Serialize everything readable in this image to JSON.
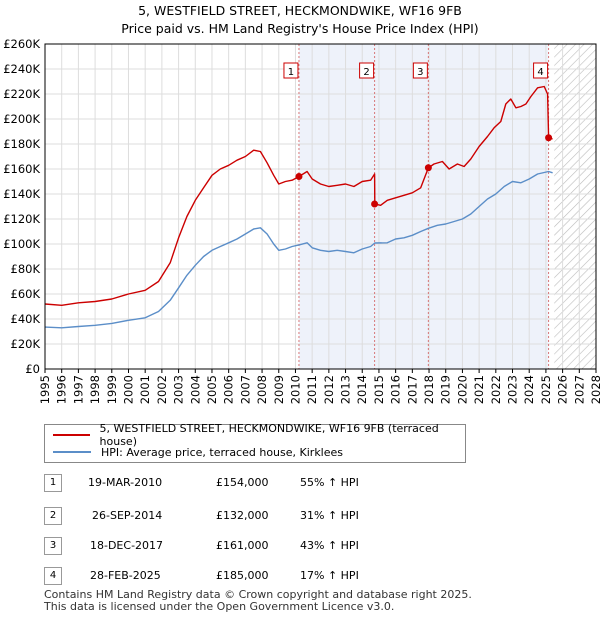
{
  "title": {
    "line1": "5, WESTFIELD STREET, HECKMONDWIKE, WF16 9FB",
    "line2": "Price paid vs. HM Land Registry's House Price Index (HPI)"
  },
  "colors": {
    "property": "#cc0000",
    "hpi": "#5b8ec8",
    "marker_line": "#d77777",
    "shade": "#eef2fa"
  },
  "chart_data": {
    "type": "line",
    "xlabel": "",
    "ylabel": "",
    "xlim": [
      1995,
      2028
    ],
    "ylim": [
      0,
      260000
    ],
    "y_ticks": [
      {
        "v": 0,
        "label": "£0"
      },
      {
        "v": 20000,
        "label": "£20K"
      },
      {
        "v": 40000,
        "label": "£40K"
      },
      {
        "v": 60000,
        "label": "£60K"
      },
      {
        "v": 80000,
        "label": "£80K"
      },
      {
        "v": 100000,
        "label": "£100K"
      },
      {
        "v": 120000,
        "label": "£120K"
      },
      {
        "v": 140000,
        "label": "£140K"
      },
      {
        "v": 160000,
        "label": "£160K"
      },
      {
        "v": 180000,
        "label": "£180K"
      },
      {
        "v": 200000,
        "label": "£200K"
      },
      {
        "v": 220000,
        "label": "£220K"
      },
      {
        "v": 240000,
        "label": "£240K"
      },
      {
        "v": 260000,
        "label": "£260K"
      }
    ],
    "x_ticks": [
      "1995",
      "1996",
      "1997",
      "1998",
      "1999",
      "2000",
      "2001",
      "2002",
      "2003",
      "2004",
      "2005",
      "2006",
      "2007",
      "2008",
      "2009",
      "2010",
      "2011",
      "2012",
      "2013",
      "2014",
      "2015",
      "2016",
      "2017",
      "2018",
      "2019",
      "2020",
      "2021",
      "2022",
      "2023",
      "2024",
      "2025",
      "2026",
      "2027",
      "2028"
    ],
    "grid": true,
    "forecast_start": 2025.5,
    "series": [
      {
        "name": "5, WESTFIELD STREET, HECKMONDWIKE, WF16 9FB (terraced house)",
        "color": "#cc0000",
        "points": [
          [
            1995.0,
            52000
          ],
          [
            1996.0,
            51000
          ],
          [
            1997.0,
            53000
          ],
          [
            1998.0,
            54000
          ],
          [
            1999.0,
            56000
          ],
          [
            2000.0,
            60000
          ],
          [
            2001.0,
            63000
          ],
          [
            2001.8,
            70000
          ],
          [
            2002.5,
            85000
          ],
          [
            2003.0,
            105000
          ],
          [
            2003.5,
            122000
          ],
          [
            2004.0,
            135000
          ],
          [
            2004.5,
            145000
          ],
          [
            2005.0,
            155000
          ],
          [
            2005.5,
            160000
          ],
          [
            2006.0,
            163000
          ],
          [
            2006.5,
            167000
          ],
          [
            2007.0,
            170000
          ],
          [
            2007.5,
            175000
          ],
          [
            2007.9,
            174000
          ],
          [
            2008.3,
            165000
          ],
          [
            2008.7,
            155000
          ],
          [
            2009.0,
            148000
          ],
          [
            2009.4,
            150000
          ],
          [
            2009.8,
            151000
          ],
          [
            2010.21,
            154000
          ],
          [
            2010.7,
            158000
          ],
          [
            2011.0,
            152000
          ],
          [
            2011.5,
            148000
          ],
          [
            2012.0,
            146000
          ],
          [
            2012.5,
            147000
          ],
          [
            2013.0,
            148000
          ],
          [
            2013.5,
            146000
          ],
          [
            2014.0,
            150000
          ],
          [
            2014.5,
            151000
          ],
          [
            2014.74,
            156000
          ],
          [
            2014.75,
            132000
          ],
          [
            2015.1,
            131000
          ],
          [
            2015.5,
            135000
          ],
          [
            2016.0,
            137000
          ],
          [
            2016.5,
            139000
          ],
          [
            2017.0,
            141000
          ],
          [
            2017.5,
            145000
          ],
          [
            2017.96,
            161000
          ],
          [
            2018.3,
            164000
          ],
          [
            2018.8,
            166000
          ],
          [
            2019.2,
            160000
          ],
          [
            2019.7,
            164000
          ],
          [
            2020.1,
            162000
          ],
          [
            2020.5,
            168000
          ],
          [
            2021.0,
            178000
          ],
          [
            2021.5,
            186000
          ],
          [
            2021.9,
            193000
          ],
          [
            2022.3,
            198000
          ],
          [
            2022.6,
            212000
          ],
          [
            2022.9,
            216000
          ],
          [
            2023.2,
            209000
          ],
          [
            2023.5,
            210000
          ],
          [
            2023.8,
            212000
          ],
          [
            2024.1,
            218000
          ],
          [
            2024.5,
            225000
          ],
          [
            2024.9,
            226000
          ],
          [
            2025.1,
            220000
          ],
          [
            2025.16,
            185000
          ],
          [
            2025.4,
            184000
          ]
        ]
      },
      {
        "name": "HPI: Average price, terraced house, Kirklees",
        "color": "#5b8ec8",
        "points": [
          [
            1995.0,
            33500
          ],
          [
            1996.0,
            33000
          ],
          [
            1997.0,
            34000
          ],
          [
            1998.0,
            35000
          ],
          [
            1999.0,
            36500
          ],
          [
            2000.0,
            39000
          ],
          [
            2001.0,
            41000
          ],
          [
            2001.8,
            46000
          ],
          [
            2002.5,
            55000
          ],
          [
            2003.0,
            65000
          ],
          [
            2003.5,
            75000
          ],
          [
            2004.0,
            83000
          ],
          [
            2004.5,
            90000
          ],
          [
            2005.0,
            95000
          ],
          [
            2005.5,
            98000
          ],
          [
            2006.0,
            101000
          ],
          [
            2006.5,
            104000
          ],
          [
            2007.0,
            108000
          ],
          [
            2007.5,
            112000
          ],
          [
            2007.9,
            113000
          ],
          [
            2008.3,
            108000
          ],
          [
            2008.7,
            100000
          ],
          [
            2009.0,
            95000
          ],
          [
            2009.4,
            96000
          ],
          [
            2009.8,
            98000
          ],
          [
            2010.21,
            99300
          ],
          [
            2010.7,
            101000
          ],
          [
            2011.0,
            97000
          ],
          [
            2011.5,
            95000
          ],
          [
            2012.0,
            94000
          ],
          [
            2012.5,
            95000
          ],
          [
            2013.0,
            94000
          ],
          [
            2013.5,
            93000
          ],
          [
            2014.0,
            96000
          ],
          [
            2014.5,
            98000
          ],
          [
            2014.75,
            100800
          ],
          [
            2015.5,
            101000
          ],
          [
            2016.0,
            104000
          ],
          [
            2016.5,
            105000
          ],
          [
            2017.0,
            107000
          ],
          [
            2017.5,
            110000
          ],
          [
            2017.96,
            112600
          ],
          [
            2018.5,
            115000
          ],
          [
            2019.0,
            116000
          ],
          [
            2019.5,
            118000
          ],
          [
            2020.0,
            120000
          ],
          [
            2020.5,
            124000
          ],
          [
            2021.0,
            130000
          ],
          [
            2021.5,
            136000
          ],
          [
            2022.0,
            140000
          ],
          [
            2022.5,
            146000
          ],
          [
            2023.0,
            150000
          ],
          [
            2023.5,
            149000
          ],
          [
            2024.0,
            152000
          ],
          [
            2024.5,
            156000
          ],
          [
            2025.16,
            158000
          ],
          [
            2025.4,
            157000
          ]
        ]
      }
    ],
    "sales": [
      {
        "id": "1",
        "x": 2010.21,
        "y": 154000
      },
      {
        "id": "2",
        "x": 2014.74,
        "y": 132000
      },
      {
        "id": "3",
        "x": 2017.96,
        "y": 161000
      },
      {
        "id": "4",
        "x": 2025.16,
        "y": 185000
      }
    ]
  },
  "legend": {
    "property": "5, WESTFIELD STREET, HECKMONDWIKE, WF16 9FB (terraced house)",
    "hpi": "HPI: Average price, terraced house, Kirklees"
  },
  "transactions": [
    {
      "num": "1",
      "date": "19-MAR-2010",
      "price": "£154,000",
      "hpi": "55% ↑ HPI"
    },
    {
      "num": "2",
      "date": "26-SEP-2014",
      "price": "£132,000",
      "hpi": "31% ↑ HPI"
    },
    {
      "num": "3",
      "date": "18-DEC-2017",
      "price": "£161,000",
      "hpi": "43% ↑ HPI"
    },
    {
      "num": "4",
      "date": "28-FEB-2025",
      "price": "£185,000",
      "hpi": "17% ↑ HPI"
    }
  ],
  "footer": {
    "line1": "Contains HM Land Registry data © Crown copyright and database right 2025.",
    "line2": "This data is licensed under the Open Government Licence v3.0."
  }
}
